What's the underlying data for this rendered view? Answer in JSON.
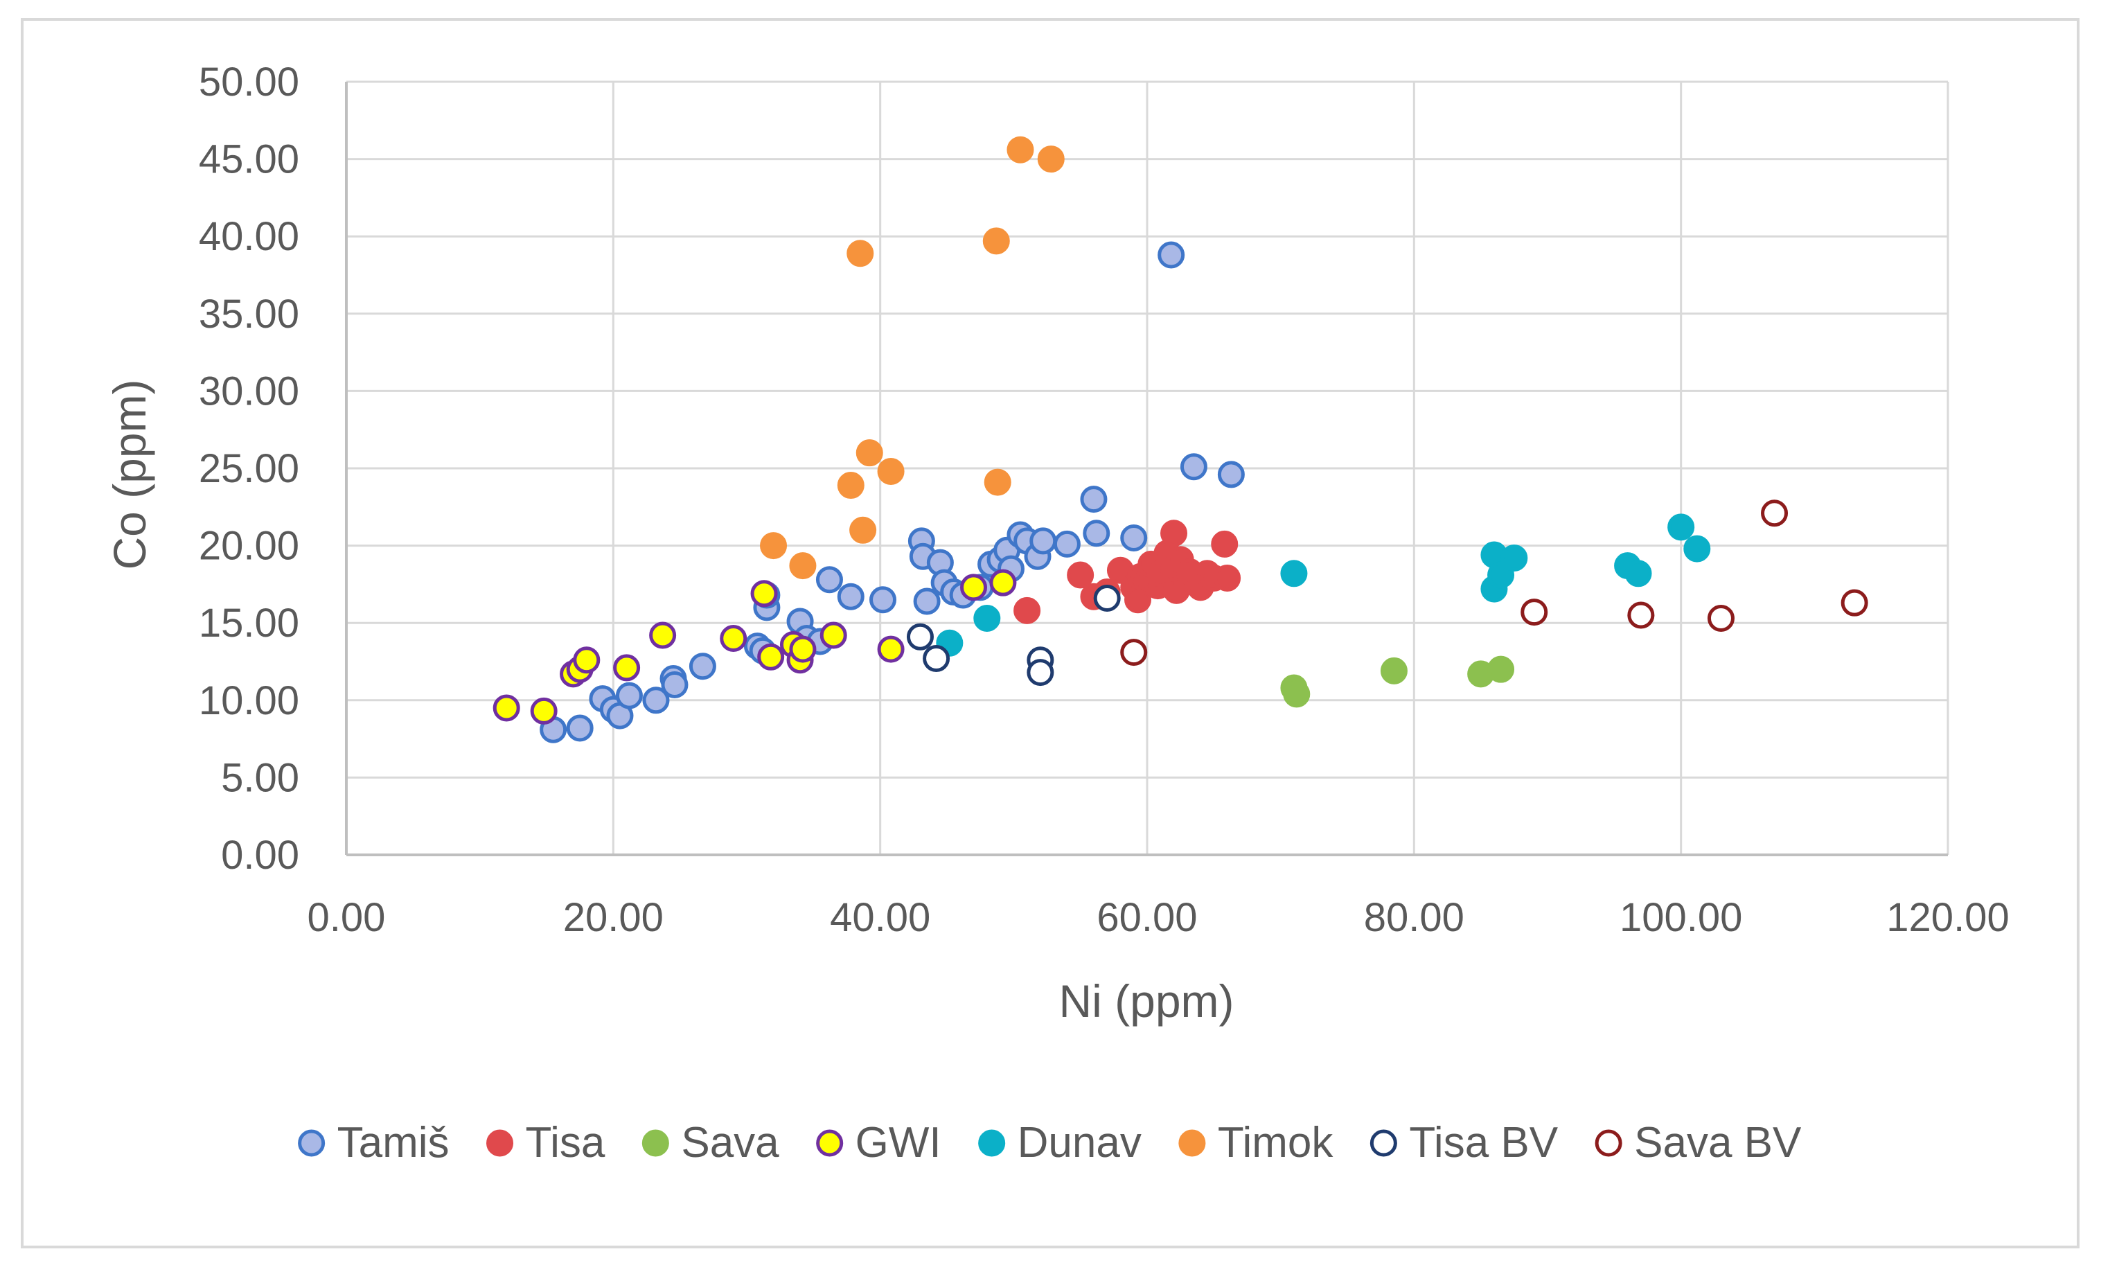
{
  "chart_data": {
    "type": "scatter",
    "title": "",
    "xlabel": "Ni (ppm)",
    "ylabel": "Co (ppm)",
    "xlim": [
      0,
      120
    ],
    "ylim": [
      0,
      50
    ],
    "x_ticks": [
      0,
      20,
      40,
      60,
      80,
      100,
      120
    ],
    "y_ticks": [
      0,
      5,
      10,
      15,
      20,
      25,
      30,
      35,
      40,
      45,
      50
    ],
    "tick_decimals": 2,
    "grid": true,
    "legend_position": "bottom",
    "series": [
      {
        "name": "Tamiš",
        "fill": "#a9b8e6",
        "stroke": "#3f76c9",
        "points": [
          [
            15.5,
            8.1
          ],
          [
            17.5,
            8.2
          ],
          [
            19.2,
            10.1
          ],
          [
            20.0,
            9.4
          ],
          [
            20.5,
            9.0
          ],
          [
            21.2,
            10.3
          ],
          [
            23.2,
            10.0
          ],
          [
            24.5,
            11.4
          ],
          [
            24.6,
            11.0
          ],
          [
            26.7,
            12.2
          ],
          [
            30.8,
            13.5
          ],
          [
            31.2,
            13.2
          ],
          [
            31.5,
            16.0
          ],
          [
            31.5,
            16.8
          ],
          [
            34.0,
            15.1
          ],
          [
            34.5,
            14.0
          ],
          [
            35.5,
            13.8
          ],
          [
            36.2,
            17.8
          ],
          [
            37.8,
            16.7
          ],
          [
            40.2,
            16.5
          ],
          [
            43.1,
            20.3
          ],
          [
            43.2,
            19.3
          ],
          [
            43.5,
            16.4
          ],
          [
            44.5,
            18.9
          ],
          [
            44.8,
            17.6
          ],
          [
            45.5,
            17.0
          ],
          [
            46.2,
            16.8
          ],
          [
            47.5,
            17.3
          ],
          [
            48.3,
            18.8
          ],
          [
            49.0,
            19.1
          ],
          [
            49.5,
            19.7
          ],
          [
            49.8,
            18.5
          ],
          [
            50.5,
            20.7
          ],
          [
            51.0,
            20.3
          ],
          [
            51.8,
            19.3
          ],
          [
            52.2,
            20.3
          ],
          [
            54.0,
            20.1
          ],
          [
            56.0,
            23.0
          ],
          [
            56.2,
            20.8
          ],
          [
            59.0,
            20.5
          ],
          [
            61.8,
            38.8
          ],
          [
            63.5,
            25.1
          ],
          [
            66.3,
            24.6
          ]
        ]
      },
      {
        "name": "Tisa",
        "fill": "#e0494c",
        "stroke": "#e0494c",
        "points": [
          [
            51.0,
            15.8
          ],
          [
            55.0,
            18.1
          ],
          [
            56.0,
            16.7
          ],
          [
            57.0,
            17.0
          ],
          [
            58.0,
            18.4
          ],
          [
            59.0,
            17.3
          ],
          [
            59.3,
            16.5
          ],
          [
            59.5,
            18.0
          ],
          [
            60.0,
            17.7
          ],
          [
            60.3,
            18.8
          ],
          [
            60.8,
            17.4
          ],
          [
            61.0,
            18.2
          ],
          [
            61.5,
            19.5
          ],
          [
            62.0,
            20.8
          ],
          [
            62.0,
            18.5
          ],
          [
            62.2,
            17.1
          ],
          [
            62.5,
            19.1
          ],
          [
            63.0,
            17.7
          ],
          [
            63.2,
            18.3
          ],
          [
            64.0,
            17.3
          ],
          [
            64.5,
            18.2
          ],
          [
            65.0,
            17.9
          ],
          [
            65.8,
            20.1
          ],
          [
            66.0,
            17.9
          ]
        ]
      },
      {
        "name": "Sava",
        "fill": "#8cc04f",
        "stroke": "#8cc04f",
        "points": [
          [
            71.0,
            10.8
          ],
          [
            71.2,
            10.4
          ],
          [
            78.5,
            11.9
          ],
          [
            85.0,
            11.7
          ],
          [
            86.5,
            12.0
          ]
        ]
      },
      {
        "name": "GWI",
        "fill": "#ffff00",
        "stroke": "#7030a0",
        "points": [
          [
            12.0,
            9.5
          ],
          [
            14.8,
            9.3
          ],
          [
            17.0,
            11.7
          ],
          [
            17.5,
            12.0
          ],
          [
            18.0,
            12.6
          ],
          [
            21.0,
            12.1
          ],
          [
            23.7,
            14.2
          ],
          [
            29.0,
            14.0
          ],
          [
            31.3,
            16.9
          ],
          [
            31.8,
            12.8
          ],
          [
            33.5,
            13.6
          ],
          [
            34.0,
            12.6
          ],
          [
            34.2,
            13.3
          ],
          [
            36.5,
            14.2
          ],
          [
            40.8,
            13.3
          ],
          [
            47.0,
            17.3
          ],
          [
            49.2,
            17.6
          ]
        ]
      },
      {
        "name": "Dunav",
        "fill": "#0bb0c8",
        "stroke": "#0bb0c8",
        "points": [
          [
            45.2,
            13.7
          ],
          [
            48.0,
            15.3
          ],
          [
            71.0,
            18.2
          ],
          [
            86.0,
            19.4
          ],
          [
            86.0,
            17.2
          ],
          [
            86.5,
            18.1
          ],
          [
            87.5,
            19.2
          ],
          [
            96.0,
            18.7
          ],
          [
            96.8,
            18.2
          ],
          [
            100.0,
            21.2
          ],
          [
            101.2,
            19.8
          ]
        ]
      },
      {
        "name": "Timok",
        "fill": "#f6933c",
        "stroke": "#f6933c",
        "points": [
          [
            32.0,
            20.0
          ],
          [
            34.2,
            18.7
          ],
          [
            37.8,
            23.9
          ],
          [
            38.5,
            38.9
          ],
          [
            38.7,
            21.0
          ],
          [
            39.2,
            26.0
          ],
          [
            40.8,
            24.8
          ],
          [
            48.7,
            39.7
          ],
          [
            48.8,
            24.1
          ],
          [
            50.5,
            45.6
          ],
          [
            52.8,
            45.0
          ]
        ]
      },
      {
        "name": "Tisa BV",
        "fill": "#ffffff",
        "stroke": "#1f3b6e",
        "points": [
          [
            43.0,
            14.1
          ],
          [
            44.2,
            12.7
          ],
          [
            52.0,
            12.6
          ],
          [
            52.0,
            11.8
          ],
          [
            57.0,
            16.6
          ]
        ]
      },
      {
        "name": "Sava BV",
        "fill": "#ffffff",
        "stroke": "#8c1c1c",
        "points": [
          [
            59.0,
            13.1
          ],
          [
            89.0,
            15.7
          ],
          [
            97.0,
            15.5
          ],
          [
            103.0,
            15.3
          ],
          [
            107.0,
            22.1
          ],
          [
            113.0,
            16.3
          ]
        ]
      }
    ]
  },
  "colors": {
    "background": "#ffffff",
    "frame": "#d9d9d9",
    "gridline": "#d9d9d9",
    "axis": "#bfbfbf",
    "text": "#595959"
  }
}
